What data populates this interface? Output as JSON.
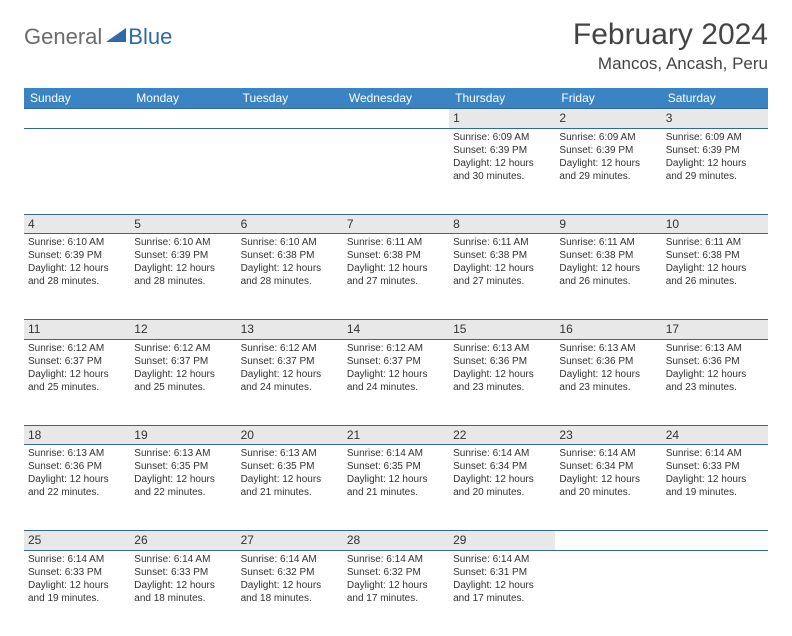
{
  "brand": {
    "text1": "General",
    "text2": "Blue"
  },
  "title": "February 2024",
  "location": "Mancos, Ancash, Peru",
  "colors": {
    "header_bg": "#3b84c4",
    "header_text": "#ffffff",
    "daynum_bg": "#e8e8e8",
    "border": "#336699",
    "brand_gray": "#6c6c6c",
    "brand_blue": "#2f6aa8",
    "text": "#333333"
  },
  "days": [
    "Sunday",
    "Monday",
    "Tuesday",
    "Wednesday",
    "Thursday",
    "Friday",
    "Saturday"
  ],
  "first_weekday_index": 4,
  "cells": [
    {
      "n": "1",
      "sr": "6:09 AM",
      "ss": "6:39 PM",
      "dl": "12 hours and 30 minutes."
    },
    {
      "n": "2",
      "sr": "6:09 AM",
      "ss": "6:39 PM",
      "dl": "12 hours and 29 minutes."
    },
    {
      "n": "3",
      "sr": "6:09 AM",
      "ss": "6:39 PM",
      "dl": "12 hours and 29 minutes."
    },
    {
      "n": "4",
      "sr": "6:10 AM",
      "ss": "6:39 PM",
      "dl": "12 hours and 28 minutes."
    },
    {
      "n": "5",
      "sr": "6:10 AM",
      "ss": "6:39 PM",
      "dl": "12 hours and 28 minutes."
    },
    {
      "n": "6",
      "sr": "6:10 AM",
      "ss": "6:38 PM",
      "dl": "12 hours and 28 minutes."
    },
    {
      "n": "7",
      "sr": "6:11 AM",
      "ss": "6:38 PM",
      "dl": "12 hours and 27 minutes."
    },
    {
      "n": "8",
      "sr": "6:11 AM",
      "ss": "6:38 PM",
      "dl": "12 hours and 27 minutes."
    },
    {
      "n": "9",
      "sr": "6:11 AM",
      "ss": "6:38 PM",
      "dl": "12 hours and 26 minutes."
    },
    {
      "n": "10",
      "sr": "6:11 AM",
      "ss": "6:38 PM",
      "dl": "12 hours and 26 minutes."
    },
    {
      "n": "11",
      "sr": "6:12 AM",
      "ss": "6:37 PM",
      "dl": "12 hours and 25 minutes."
    },
    {
      "n": "12",
      "sr": "6:12 AM",
      "ss": "6:37 PM",
      "dl": "12 hours and 25 minutes."
    },
    {
      "n": "13",
      "sr": "6:12 AM",
      "ss": "6:37 PM",
      "dl": "12 hours and 24 minutes."
    },
    {
      "n": "14",
      "sr": "6:12 AM",
      "ss": "6:37 PM",
      "dl": "12 hours and 24 minutes."
    },
    {
      "n": "15",
      "sr": "6:13 AM",
      "ss": "6:36 PM",
      "dl": "12 hours and 23 minutes."
    },
    {
      "n": "16",
      "sr": "6:13 AM",
      "ss": "6:36 PM",
      "dl": "12 hours and 23 minutes."
    },
    {
      "n": "17",
      "sr": "6:13 AM",
      "ss": "6:36 PM",
      "dl": "12 hours and 23 minutes."
    },
    {
      "n": "18",
      "sr": "6:13 AM",
      "ss": "6:36 PM",
      "dl": "12 hours and 22 minutes."
    },
    {
      "n": "19",
      "sr": "6:13 AM",
      "ss": "6:35 PM",
      "dl": "12 hours and 22 minutes."
    },
    {
      "n": "20",
      "sr": "6:13 AM",
      "ss": "6:35 PM",
      "dl": "12 hours and 21 minutes."
    },
    {
      "n": "21",
      "sr": "6:14 AM",
      "ss": "6:35 PM",
      "dl": "12 hours and 21 minutes."
    },
    {
      "n": "22",
      "sr": "6:14 AM",
      "ss": "6:34 PM",
      "dl": "12 hours and 20 minutes."
    },
    {
      "n": "23",
      "sr": "6:14 AM",
      "ss": "6:34 PM",
      "dl": "12 hours and 20 minutes."
    },
    {
      "n": "24",
      "sr": "6:14 AM",
      "ss": "6:33 PM",
      "dl": "12 hours and 19 minutes."
    },
    {
      "n": "25",
      "sr": "6:14 AM",
      "ss": "6:33 PM",
      "dl": "12 hours and 19 minutes."
    },
    {
      "n": "26",
      "sr": "6:14 AM",
      "ss": "6:33 PM",
      "dl": "12 hours and 18 minutes."
    },
    {
      "n": "27",
      "sr": "6:14 AM",
      "ss": "6:32 PM",
      "dl": "12 hours and 18 minutes."
    },
    {
      "n": "28",
      "sr": "6:14 AM",
      "ss": "6:32 PM",
      "dl": "12 hours and 17 minutes."
    },
    {
      "n": "29",
      "sr": "6:14 AM",
      "ss": "6:31 PM",
      "dl": "12 hours and 17 minutes."
    }
  ],
  "labels": {
    "sunrise": "Sunrise:",
    "sunset": "Sunset:",
    "daylight": "Daylight:"
  }
}
